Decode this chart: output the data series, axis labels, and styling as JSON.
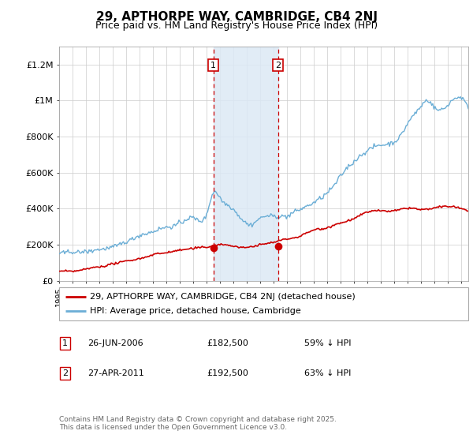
{
  "title": "29, APTHORPE WAY, CAMBRIDGE, CB4 2NJ",
  "subtitle": "Price paid vs. HM Land Registry's House Price Index (HPI)",
  "hpi_color": "#6baed6",
  "price_color": "#cc0000",
  "marker_color": "#cc0000",
  "background_color": "#ffffff",
  "grid_color": "#cccccc",
  "annotation_bg": "#dce9f5",
  "vline_color": "#cc0000",
  "ylim": [
    0,
    1300000
  ],
  "yticks": [
    0,
    200000,
    400000,
    600000,
    800000,
    1000000,
    1200000
  ],
  "ytick_labels": [
    "£0",
    "£200K",
    "£400K",
    "£600K",
    "£800K",
    "£1M",
    "£1.2M"
  ],
  "year_start": 1995,
  "year_end": 2025,
  "legend_label_red": "29, APTHORPE WAY, CAMBRIDGE, CB4 2NJ (detached house)",
  "legend_label_blue": "HPI: Average price, detached house, Cambridge",
  "transaction1_date": "26-JUN-2006",
  "transaction1_price": "£182,500",
  "transaction1_pct": "59% ↓ HPI",
  "transaction2_date": "27-APR-2011",
  "transaction2_price": "£192,500",
  "transaction2_pct": "63% ↓ HPI",
  "footer": "Contains HM Land Registry data © Crown copyright and database right 2025.\nThis data is licensed under the Open Government Licence v3.0.",
  "transaction1_year": 2006.49,
  "transaction2_year": 2011.32,
  "transaction1_value": 182500,
  "transaction2_value": 192500,
  "hpi_anchors_x": [
    1995,
    1996,
    1997,
    1998,
    1999,
    2000,
    2001,
    2002,
    2003,
    2004,
    2005,
    2006,
    2006.5,
    2007,
    2007.8,
    2008.5,
    2009,
    2010,
    2011,
    2012,
    2013,
    2014,
    2015,
    2016,
    2017,
    2018,
    2019,
    2020,
    2020.5,
    2021,
    2022,
    2022.5,
    2023,
    2024,
    2025
  ],
  "hpi_anchors_y": [
    148000,
    155000,
    168000,
    185000,
    205000,
    235000,
    265000,
    290000,
    315000,
    340000,
    365000,
    390000,
    510000,
    480000,
    430000,
    370000,
    330000,
    355000,
    370000,
    370000,
    395000,
    435000,
    490000,
    580000,
    670000,
    730000,
    760000,
    775000,
    810000,
    870000,
    960000,
    990000,
    950000,
    975000,
    1010000
  ],
  "price_anchors_x": [
    1995,
    1996,
    1997,
    1998,
    1999,
    2000,
    2001,
    2002,
    2003,
    2004,
    2005,
    2006,
    2006.49,
    2007,
    2008,
    2009,
    2010,
    2011,
    2011.32,
    2012,
    2013,
    2014,
    2015,
    2016,
    2017,
    2018,
    2019,
    2020,
    2021,
    2022,
    2023,
    2024,
    2025
  ],
  "price_anchors_y": [
    55000,
    60000,
    68000,
    78000,
    92000,
    108000,
    122000,
    138000,
    152000,
    163000,
    172000,
    178000,
    182500,
    185000,
    168000,
    158000,
    170000,
    185000,
    192500,
    205000,
    220000,
    248000,
    268000,
    295000,
    315000,
    345000,
    350000,
    348000,
    360000,
    355000,
    365000,
    370000,
    358000
  ],
  "noise_seed": 42,
  "hpi_noise_std": 6000,
  "price_noise_std": 2500
}
